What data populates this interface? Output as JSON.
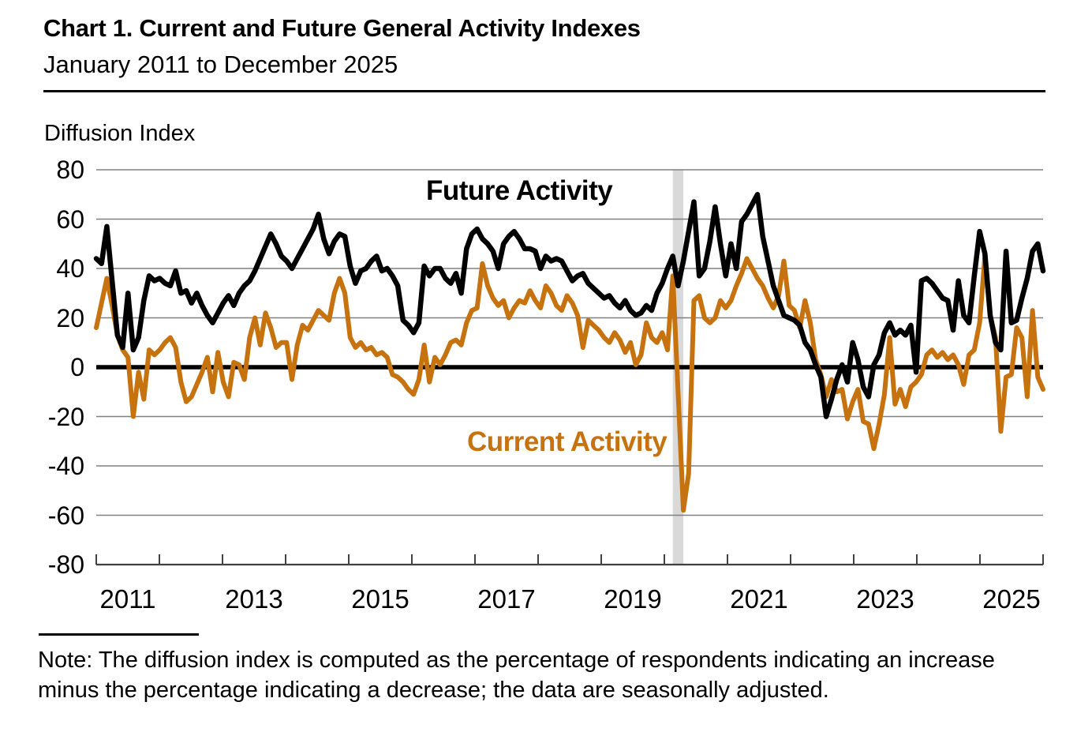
{
  "header": {
    "title": "Chart 1. Current and Future General Activity Indexes",
    "subtitle": "January 2011 to December 2025",
    "ylabel": "Diffusion Index"
  },
  "note": {
    "line1": "Note: The diffusion index is computed as the percentage of respondents indicating an increase",
    "line2": "minus the percentage indicating a decrease; the data are seasonally adjusted."
  },
  "chart_data": {
    "type": "line",
    "title": "Chart 1. Current and Future General Activity Indexes",
    "subtitle": "January 2011 to December 2025",
    "ylabel": "Diffusion Index",
    "x_start": "2011-01",
    "x_end": "2025-12",
    "points_per_series": 180,
    "x_tick_labels": [
      "2011",
      "2013",
      "2015",
      "2017",
      "2019",
      "2021",
      "2023",
      "2025"
    ],
    "y_ticks": [
      80,
      60,
      40,
      20,
      0,
      -20,
      -40,
      -60,
      -80
    ],
    "ylim": [
      -80,
      80
    ],
    "grid": true,
    "gridline_color": "#808080",
    "axis_color": "#404040",
    "zero_line_color": "#000000",
    "recession_band": {
      "start": "2020-02",
      "end": "2020-04",
      "start_month_index": 109,
      "end_month_index": 111,
      "color": "#D9D9D9"
    },
    "series": [
      {
        "id": "current-activity",
        "name": "Current Activity",
        "color": "#C6720E",
        "width": 6,
        "values": [
          16,
          26,
          36,
          25,
          13,
          7,
          4,
          -20,
          -2,
          -13,
          7,
          5,
          7,
          10,
          12,
          8,
          -6,
          -14,
          -12,
          -7,
          -2,
          4,
          -10,
          6,
          -6,
          -12,
          2,
          1,
          -5,
          12,
          20,
          9,
          22,
          16,
          8,
          10,
          10,
          -5,
          9,
          17,
          15,
          19,
          23,
          21,
          19,
          30,
          36,
          30,
          12,
          8,
          10,
          7,
          8,
          5,
          6,
          4,
          -3,
          -4,
          -6,
          -9,
          -11,
          -5,
          9,
          -6,
          4,
          1,
          5,
          10,
          11,
          9,
          18,
          23,
          24,
          42,
          33,
          28,
          25,
          27,
          20,
          24,
          27,
          26,
          31,
          27,
          24,
          33,
          30,
          25,
          23,
          29,
          26,
          21,
          8,
          19,
          17,
          15,
          12,
          10,
          14,
          11,
          6,
          10,
          1,
          5,
          18,
          12,
          10,
          14,
          7,
          37,
          -10,
          -58,
          -43,
          27,
          29,
          20,
          18,
          20,
          27,
          24,
          27,
          33,
          38,
          44,
          40,
          36,
          33,
          28,
          24,
          29,
          43,
          25,
          23,
          16,
          27,
          18,
          3,
          -3,
          -12,
          -5,
          -10,
          -9,
          -21,
          -14,
          -9,
          -22,
          -23,
          -33,
          -23,
          -11,
          12,
          -15,
          -9,
          -16,
          -8,
          -6,
          -3,
          5,
          7,
          4,
          6,
          3,
          5,
          1,
          -7,
          5,
          7,
          18,
          45,
          21,
          12,
          -26,
          -4,
          -3,
          16,
          12,
          -12,
          23,
          -4,
          -9
        ]
      },
      {
        "id": "future-activity",
        "name": "Future Activity",
        "color": "#000000",
        "width": 6.5,
        "values": [
          44,
          42,
          57,
          35,
          13,
          8,
          30,
          7,
          12,
          27,
          37,
          35,
          36,
          34,
          33,
          39,
          30,
          31,
          26,
          30,
          25,
          21,
          18,
          22,
          26,
          29,
          25,
          30,
          33,
          35,
          39,
          44,
          49,
          54,
          50,
          45,
          43,
          40,
          44,
          48,
          52,
          56,
          62,
          52,
          46,
          51,
          54,
          53,
          41,
          34,
          39,
          40,
          43,
          45,
          39,
          40,
          37,
          33,
          19,
          17,
          14,
          18,
          41,
          37,
          40,
          40,
          36,
          34,
          38,
          30,
          48,
          54,
          56,
          52,
          50,
          47,
          40,
          50,
          53,
          55,
          52,
          48,
          48,
          47,
          40,
          45,
          43,
          44,
          43,
          39,
          35,
          37,
          38,
          34,
          32,
          30,
          28,
          29,
          26,
          24,
          27,
          23,
          21,
          22,
          25,
          23,
          30,
          34,
          40,
          45,
          33,
          43,
          55,
          67,
          37,
          40,
          51,
          65,
          50,
          37,
          50,
          40,
          59,
          62,
          66,
          70,
          53,
          43,
          33,
          27,
          21,
          20,
          19,
          17,
          10,
          7,
          1,
          -4,
          -20,
          -13,
          -5,
          1,
          -6,
          10,
          3,
          -8,
          -12,
          1,
          5,
          14,
          18,
          13,
          15,
          13,
          17,
          -2,
          35,
          36,
          34,
          31,
          28,
          27,
          15,
          35,
          21,
          18,
          37,
          55,
          46,
          21,
          10,
          7,
          47,
          18,
          19,
          28,
          36,
          47,
          50,
          39
        ]
      }
    ]
  }
}
